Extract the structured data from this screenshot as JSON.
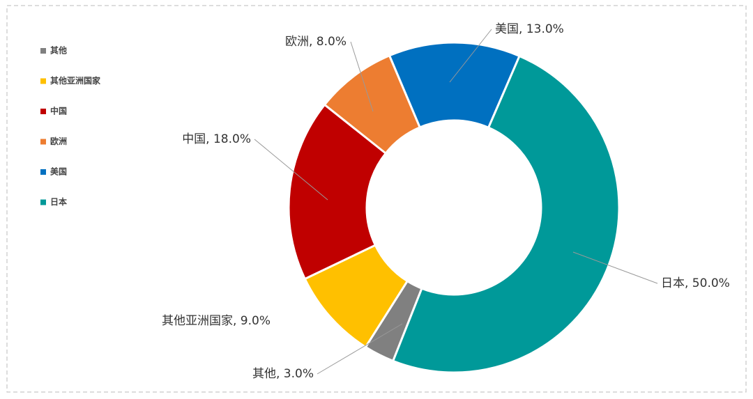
{
  "chart_data": {
    "type": "pie",
    "categories": [
      "其他",
      "其他亚洲国家",
      "中国",
      "欧洲",
      "美国",
      "日本"
    ],
    "values": [
      3,
      9,
      18,
      8,
      13,
      50
    ],
    "value_labels": [
      "其他, 3.0%",
      "其他亚洲国家, 9.0%",
      "中国, 18.0%",
      "欧洲, 8.0%",
      "美国, 13.0%",
      "日本, 50.0%"
    ],
    "colors": [
      "#808080",
      "#ffc000",
      "#c00000",
      "#ed7d31",
      "#0070c0",
      "#009999"
    ],
    "legend": "left"
  }
}
